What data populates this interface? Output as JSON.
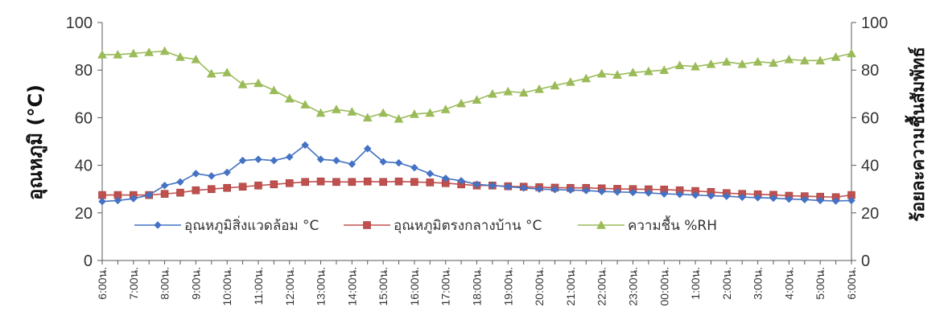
{
  "chart_data": {
    "type": "line",
    "categories": [
      "6:00น.",
      "6:30น.",
      "7:00น.",
      "7:30น.",
      "8:00น.",
      "8:30น.",
      "9:00น.",
      "9:30น.",
      "10:00น.",
      "10:30น.",
      "11:00น.",
      "11:30น.",
      "12:00น.",
      "12:30น.",
      "13:00น.",
      "13:30น.",
      "14:00น.",
      "14:30น.",
      "15:00น.",
      "15:30น.",
      "16:00น.",
      "16:30น.",
      "17:00น.",
      "17:30น.",
      "18:00น.",
      "18:30น.",
      "19:00น.",
      "19:30น.",
      "20:00น.",
      "20:30น.",
      "21:00น.",
      "21:30น.",
      "22:00น.",
      "22:30น.",
      "23:00น.",
      "23:30น.",
      "00:00น.",
      "0:30น.",
      "1:00น.",
      "1:30น.",
      "2:00น.",
      "2:30น.",
      "3:00น.",
      "3:30น.",
      "4:00น.",
      "4:30น.",
      "5:00น.",
      "5:30น.",
      "6:00น."
    ],
    "x_labels": [
      "6:00น.",
      "7:00น.",
      "8:00น.",
      "9:00น.",
      "10:00น.",
      "11:00น.",
      "12:00น.",
      "13:00น.",
      "14:00น.",
      "15:00น.",
      "16:00น.",
      "17:00น.",
      "18:00น.",
      "19:00น.",
      "20:00น.",
      "21:00น.",
      "22:00น.",
      "23:00น.",
      "00:00น.",
      "1:00น.",
      "2:00น.",
      "3:00น.",
      "4:00น.",
      "5:00น.",
      "6:00น."
    ],
    "series": [
      {
        "name": "อุณหภูมิสิ่งแวดล้อม °C",
        "axis": "left",
        "color": "#4472C4",
        "marker": "diamond",
        "values": [
          24.8,
          25.2,
          26.0,
          27.5,
          31.5,
          33.0,
          36.5,
          35.5,
          37.0,
          42.0,
          42.5,
          42.0,
          43.5,
          48.5,
          42.5,
          42.0,
          40.5,
          47.0,
          41.5,
          41.0,
          39.0,
          36.5,
          34.5,
          33.5,
          32.0,
          31.5,
          31.0,
          30.5,
          30.0,
          29.8,
          29.6,
          29.4,
          29.0,
          28.8,
          28.6,
          28.4,
          28.0,
          27.8,
          27.5,
          27.2,
          27.0,
          26.6,
          26.4,
          26.2,
          25.8,
          25.6,
          25.2,
          25.0,
          25.2
        ]
      },
      {
        "name": "อุณหภูมิตรงกลางบ้าน °C",
        "axis": "left",
        "color": "#C0504D",
        "marker": "square",
        "values": [
          27.5,
          27.5,
          27.5,
          27.5,
          28.0,
          28.5,
          29.5,
          30.0,
          30.5,
          31.0,
          31.5,
          32.0,
          32.5,
          33.0,
          33.2,
          33.0,
          33.0,
          33.2,
          33.0,
          33.2,
          33.0,
          32.8,
          32.5,
          32.0,
          31.5,
          31.5,
          31.2,
          31.0,
          30.8,
          30.6,
          30.5,
          30.5,
          30.3,
          30.1,
          30.0,
          29.9,
          29.8,
          29.5,
          29.2,
          28.8,
          28.3,
          28.0,
          27.8,
          27.6,
          27.2,
          27.0,
          26.8,
          26.6,
          27.5
        ]
      },
      {
        "name": "ความชื้น %RH",
        "axis": "right",
        "color": "#9BBB59",
        "marker": "triangle",
        "values": [
          86.5,
          86.5,
          87.0,
          87.5,
          88.0,
          85.5,
          84.5,
          78.5,
          79.0,
          74.0,
          74.5,
          71.5,
          68.0,
          65.5,
          62.0,
          63.5,
          62.5,
          60.0,
          62.0,
          59.5,
          61.5,
          62.0,
          63.5,
          66.0,
          67.5,
          70.0,
          71.0,
          70.5,
          72.0,
          73.5,
          75.0,
          76.5,
          78.5,
          78.0,
          79.0,
          79.5,
          80.0,
          82.0,
          81.5,
          82.5,
          83.5,
          82.5,
          83.5,
          83.0,
          84.5,
          84.0,
          84.0,
          85.5,
          87.0
        ]
      }
    ],
    "ylabel": "อุณหภูมิ (°C)",
    "y2label": "ร้อยละความชื้นสัมพัทธ์",
    "ylim": [
      0,
      100
    ],
    "y2lim": [
      0,
      100
    ],
    "yticks": [
      "0",
      "20",
      "40",
      "60",
      "80",
      "100"
    ],
    "y2ticks": [
      "0",
      "20",
      "40",
      "60",
      "80",
      "100"
    ],
    "grid": false,
    "legend_position": "lower-left, inside plot"
  }
}
